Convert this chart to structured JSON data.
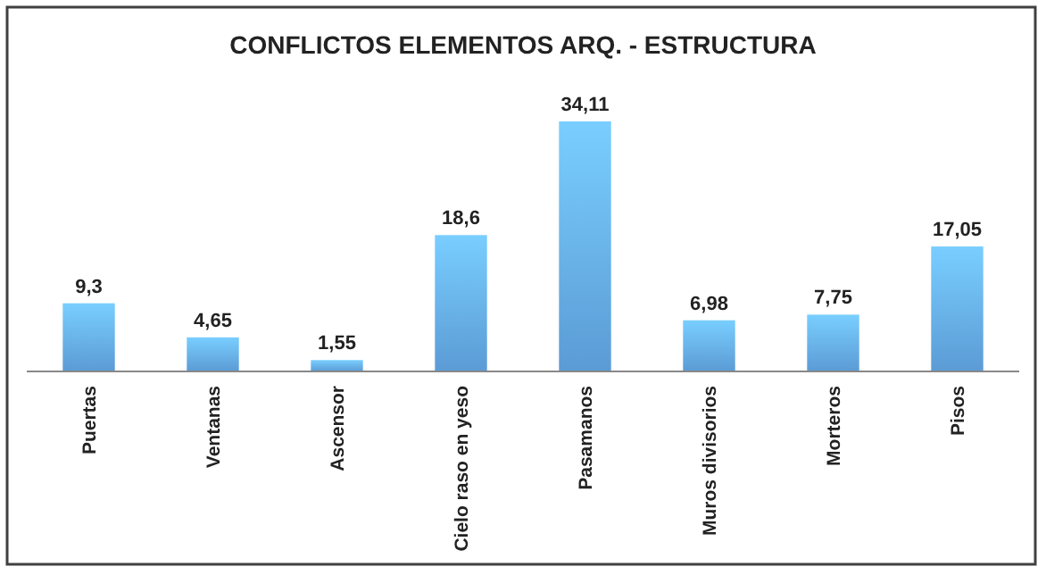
{
  "chart_data": {
    "type": "bar",
    "title": "CONFLICTOS ELEMENTOS ARQ. - ESTRUCTURA",
    "categories": [
      "Puertas",
      "Ventanas",
      "Ascensor",
      "Cielo raso en yeso",
      "Pasamanos",
      "Muros divisorios",
      "Morteros",
      "Pisos"
    ],
    "values": [
      9.3,
      4.65,
      1.55,
      18.6,
      34.11,
      6.98,
      7.75,
      17.05
    ],
    "value_labels": [
      "9,3",
      "4,65",
      "1,55",
      "18,6",
      "34,11",
      "6,98",
      "7,75",
      "17,05"
    ],
    "color": "#5b9bd5",
    "grid": false
  }
}
